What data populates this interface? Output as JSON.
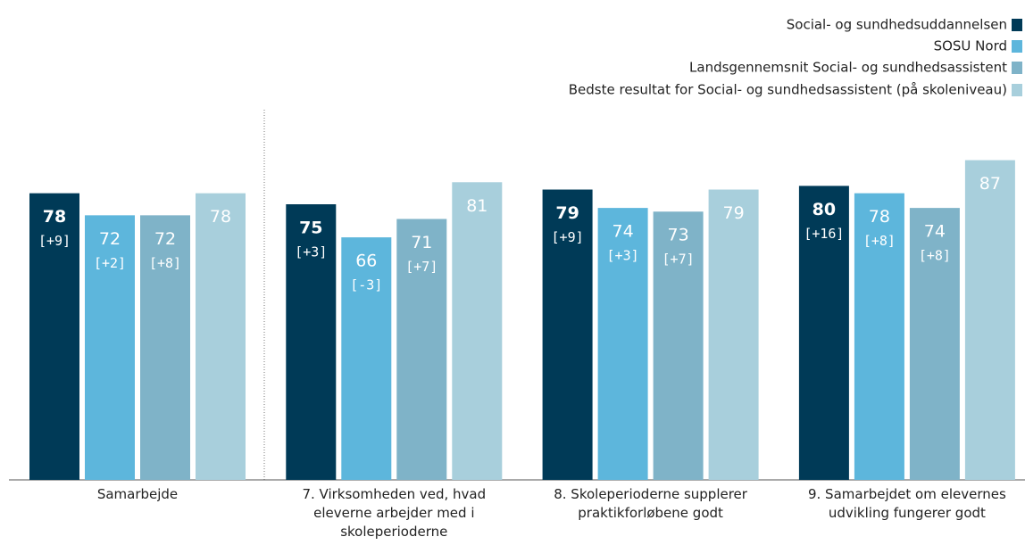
{
  "chart_data": {
    "type": "bar",
    "categories": [
      "Samarbejde",
      "7. Virksomheden ved, hvad eleverne arbejder med i skoleperioderne",
      "8. Skoleperioderne supplerer praktikforløbene godt",
      "9. Samarbejdet om elevernes udvikling fungerer godt"
    ],
    "series": [
      {
        "name": "Social- og sundhedsuddannelsen",
        "color": "#003a57",
        "values": [
          78,
          75,
          79,
          80
        ],
        "deltas": [
          "[+9]",
          "[+3]",
          "[+9]",
          "[+16]"
        ]
      },
      {
        "name": "SOSU Nord",
        "color": "#5db6dc",
        "values": [
          72,
          66,
          74,
          78
        ],
        "deltas": [
          "[+2]",
          "[-3]",
          "[+3]",
          "[+8]"
        ]
      },
      {
        "name": "Landsgennemsnit Social- og sundhedsassistent",
        "color": "#7fb3c8",
        "values": [
          72,
          71,
          73,
          74
        ],
        "deltas": [
          "[+8]",
          "[+7]",
          "[+7]",
          "[+8]"
        ]
      },
      {
        "name": "Bedste resultat for Social- og sundhedsassistent (på skoleniveau)",
        "color": "#a8cfdc",
        "values": [
          78,
          81,
          79,
          87
        ]
      }
    ],
    "ylim": [
      0,
      100
    ],
    "legend": "top-right"
  }
}
